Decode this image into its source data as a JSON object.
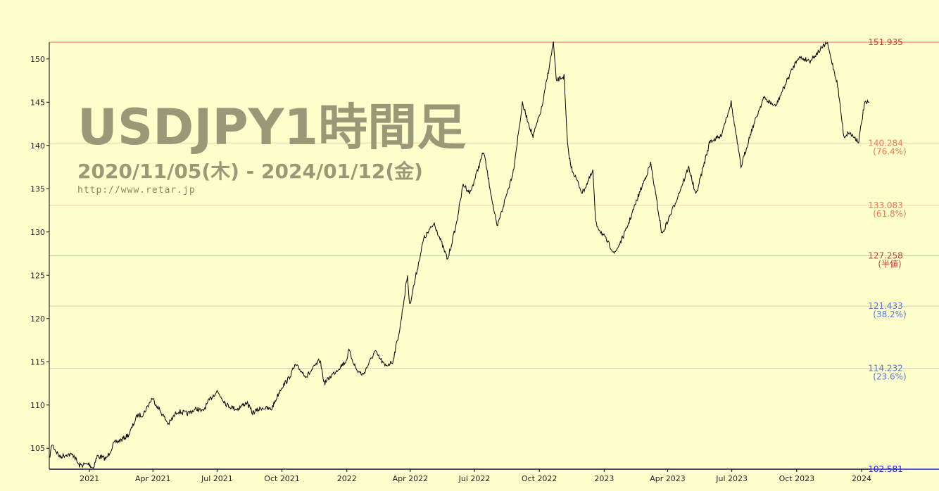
{
  "watermark": {
    "title": "USDJPY1時間足",
    "range": "2020/11/05(木) - 2024/01/12(金)",
    "url": "http://www.retar.jp"
  },
  "chart_data": {
    "type": "line",
    "title": "USDJPY1時間足",
    "subtitle": "2020/11/05(木) - 2024/01/12(金)",
    "xlabel": "",
    "ylabel": "",
    "ylim": [
      102.581,
      151.935
    ],
    "x_ticks": [
      "2021",
      "Apr 2021",
      "Jul 2021",
      "Oct 2021",
      "2022",
      "Apr 2022",
      "Jul 2022",
      "Oct 2022",
      "2023",
      "Apr 2023",
      "Jul 2023",
      "Oct 2023",
      "2024"
    ],
    "x_tick_dates": [
      "2021-01-01",
      "2021-04-01",
      "2021-07-01",
      "2021-10-01",
      "2022-01-01",
      "2022-04-01",
      "2022-07-01",
      "2022-10-01",
      "2023-01-01",
      "2023-04-01",
      "2023-07-01",
      "2023-10-01",
      "2024-01-01"
    ],
    "y_ticks": [
      105,
      110,
      115,
      120,
      125,
      130,
      135,
      140,
      145,
      150
    ],
    "grid": false,
    "levels": [
      {
        "value": "151.935",
        "label": "",
        "color": "#dd3333",
        "line_color": "#ee6666",
        "y": 151.935
      },
      {
        "value": "140.284",
        "label": "(76.4%)",
        "color": "#ee7755",
        "line_color": "#ffccaa",
        "y": 140.284
      },
      {
        "value": "133.083",
        "label": "(61.8%)",
        "color": "#ee7755",
        "line_color": "#ffccaa",
        "y": 133.083
      },
      {
        "value": "127.258",
        "label": "(半値)",
        "color": "#bb4444",
        "line_color": "#ffbbaa",
        "y": 127.258
      },
      {
        "value": "121.433",
        "label": "(38.2%)",
        "color": "#5577dd",
        "line_color": "#ccccbb",
        "y": 121.433
      },
      {
        "value": "114.232",
        "label": "(23.6%)",
        "color": "#5577dd",
        "line_color": "#ccccbb",
        "y": 114.232
      },
      {
        "value": "102.581",
        "label": "",
        "color": "#2222dd",
        "line_color": "#2222dd",
        "y": 102.581
      }
    ],
    "series": [
      {
        "points": [
          [
            "2020-11-05",
            103.8
          ],
          [
            "2020-11-09",
            105.5
          ],
          [
            "2020-11-12",
            105.0
          ],
          [
            "2020-11-20",
            104.0
          ],
          [
            "2020-11-30",
            104.3
          ],
          [
            "2020-12-10",
            104.2
          ],
          [
            "2020-12-17",
            103.0
          ],
          [
            "2020-12-31",
            103.2
          ],
          [
            "2021-01-06",
            102.7
          ],
          [
            "2021-01-12",
            104.1
          ],
          [
            "2021-01-25",
            103.8
          ],
          [
            "2021-02-05",
            105.6
          ],
          [
            "2021-02-16",
            106.0
          ],
          [
            "2021-02-26",
            106.6
          ],
          [
            "2021-03-10",
            108.8
          ],
          [
            "2021-03-18",
            108.9
          ],
          [
            "2021-03-31",
            110.8
          ],
          [
            "2021-04-10",
            109.5
          ],
          [
            "2021-04-23",
            107.8
          ],
          [
            "2021-05-06",
            109.3
          ],
          [
            "2021-05-20",
            109.0
          ],
          [
            "2021-06-03",
            109.6
          ],
          [
            "2021-06-10",
            109.2
          ],
          [
            "2021-06-22",
            110.8
          ],
          [
            "2021-07-01",
            111.6
          ],
          [
            "2021-07-15",
            110.0
          ],
          [
            "2021-07-29",
            109.5
          ],
          [
            "2021-08-12",
            110.3
          ],
          [
            "2021-08-20",
            109.1
          ],
          [
            "2021-09-03",
            109.7
          ],
          [
            "2021-09-16",
            109.5
          ],
          [
            "2021-09-30",
            112.0
          ],
          [
            "2021-10-10",
            113.0
          ],
          [
            "2021-10-20",
            114.6
          ],
          [
            "2021-11-05",
            113.3
          ],
          [
            "2021-11-24",
            115.2
          ],
          [
            "2021-11-30",
            112.5
          ],
          [
            "2021-12-10",
            113.4
          ],
          [
            "2021-12-31",
            115.1
          ],
          [
            "2022-01-04",
            116.3
          ],
          [
            "2022-01-15",
            114.0
          ],
          [
            "2022-01-24",
            113.5
          ],
          [
            "2022-02-10",
            116.2
          ],
          [
            "2022-02-24",
            114.5
          ],
          [
            "2022-03-07",
            115.0
          ],
          [
            "2022-03-17",
            118.7
          ],
          [
            "2022-03-28",
            125.0
          ],
          [
            "2022-03-31",
            121.5
          ],
          [
            "2022-04-20",
            129.2
          ],
          [
            "2022-05-05",
            131.0
          ],
          [
            "2022-05-24",
            126.8
          ],
          [
            "2022-06-05",
            130.8
          ],
          [
            "2022-06-15",
            135.5
          ],
          [
            "2022-06-25",
            134.5
          ],
          [
            "2022-07-14",
            139.3
          ],
          [
            "2022-08-02",
            130.5
          ],
          [
            "2022-08-25",
            137.0
          ],
          [
            "2022-09-07",
            144.8
          ],
          [
            "2022-09-22",
            141.0
          ],
          [
            "2022-10-05",
            144.5
          ],
          [
            "2022-10-21",
            151.9
          ],
          [
            "2022-10-25",
            147.5
          ],
          [
            "2022-11-05",
            148.0
          ],
          [
            "2022-11-10",
            140.0
          ],
          [
            "2022-11-15",
            137.5
          ],
          [
            "2022-12-01",
            134.5
          ],
          [
            "2022-12-16",
            137.0
          ],
          [
            "2022-12-20",
            131.0
          ],
          [
            "2023-01-16",
            127.5
          ],
          [
            "2023-01-31",
            130.0
          ],
          [
            "2023-02-20",
            134.5
          ],
          [
            "2023-03-08",
            137.9
          ],
          [
            "2023-03-24",
            129.7
          ],
          [
            "2023-04-10",
            133.0
          ],
          [
            "2023-05-01",
            137.5
          ],
          [
            "2023-05-11",
            134.2
          ],
          [
            "2023-05-31",
            140.5
          ],
          [
            "2023-06-15",
            141.0
          ],
          [
            "2023-06-30",
            145.0
          ],
          [
            "2023-07-14",
            137.5
          ],
          [
            "2023-07-28",
            141.5
          ],
          [
            "2023-08-15",
            145.5
          ],
          [
            "2023-09-01",
            144.5
          ],
          [
            "2023-09-20",
            148.0
          ],
          [
            "2023-10-03",
            150.2
          ],
          [
            "2023-10-20",
            149.8
          ],
          [
            "2023-11-13",
            151.9
          ],
          [
            "2023-11-28",
            147.0
          ],
          [
            "2023-12-07",
            141.0
          ],
          [
            "2023-12-14",
            141.5
          ],
          [
            "2023-12-28",
            140.5
          ],
          [
            "2024-01-05",
            144.8
          ],
          [
            "2024-01-12",
            145.0
          ]
        ]
      }
    ]
  }
}
